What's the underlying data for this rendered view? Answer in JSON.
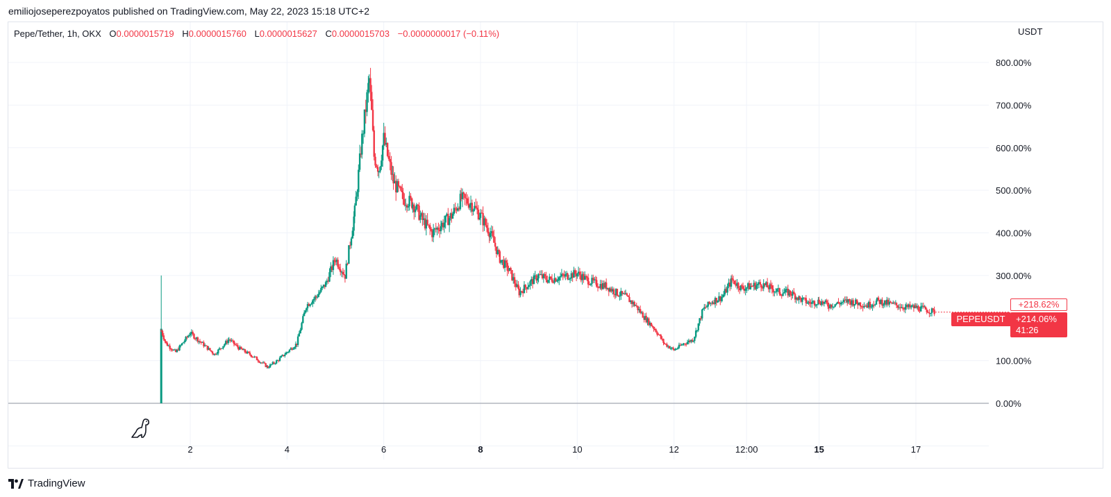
{
  "header": {
    "published": "emiliojoseperezpoyatos published on TradingView.com, May 22, 2023 15:18 UTC+2"
  },
  "legend": {
    "symbol": "Pepe/Tether, 1h, OKX",
    "open_label": "O",
    "open": "0.0000015719",
    "high_label": "H",
    "high": "0.0000015760",
    "low_label": "L",
    "low": "0.0000015627",
    "close_label": "C",
    "close": "0.0000015703",
    "change": "−0.0000000017 (−0.11%)"
  },
  "currency": "USDT",
  "badges": {
    "pct_change": "+218.62%",
    "ticker": "PEPEUSDT",
    "last_pct": "+214.06%",
    "countdown": "41:26"
  },
  "footer": {
    "brand": "TradingView"
  },
  "icons": {
    "logo": "tradingview-logo-icon",
    "watermark": "dinosaur-icon"
  },
  "colors": {
    "up": "#089981",
    "down": "#f23645",
    "grid": "#f0f3fa",
    "text": "#131722"
  },
  "chart_data": {
    "type": "candlestick",
    "title": "Pepe/Tether, 1h, OKX",
    "y_unit": "percent",
    "ylim": [
      -100,
      800
    ],
    "y_ticks": [
      "800.00%",
      "700.00%",
      "600.00%",
      "500.00%",
      "400.00%",
      "300.00%",
      "200.00%",
      "100.00%",
      "0.00%"
    ],
    "y_tick_values": [
      800,
      700,
      600,
      500,
      400,
      300,
      200,
      100,
      0
    ],
    "x_ticks": [
      "2",
      "4",
      "6",
      "8",
      "10",
      "12",
      "12:00",
      "15",
      "17"
    ],
    "x_tick_bold": [
      false,
      false,
      false,
      true,
      false,
      false,
      false,
      true,
      false
    ],
    "grid": true,
    "series": [
      {
        "name": "PEPEUSDT",
        "x": [
          1.4,
          1.5,
          1.7,
          2.0,
          2.2,
          2.5,
          2.8,
          3.0,
          3.3,
          3.6,
          3.8,
          4.0,
          4.2,
          4.4,
          4.6,
          4.8,
          5.0,
          5.2,
          5.4,
          5.55,
          5.7,
          5.75,
          5.8,
          5.9,
          6.0,
          6.2,
          6.4,
          6.6,
          6.8,
          7.0,
          7.2,
          7.4,
          7.6,
          7.8,
          8.0,
          8.2,
          8.4,
          8.6,
          8.8,
          9.0,
          9.2,
          9.4,
          9.6,
          9.8,
          10.0,
          10.2,
          10.4,
          10.6,
          10.8,
          11.0,
          11.2,
          11.4,
          11.6,
          11.8,
          12.0,
          12.2,
          12.4,
          12.6,
          12.8,
          13.0,
          13.2,
          13.4,
          13.6,
          13.8,
          14.0,
          14.2,
          14.4,
          14.6,
          14.8,
          15.0,
          15.2,
          15.4,
          15.6,
          15.8,
          16.0,
          16.2,
          16.4,
          16.6,
          16.8,
          17.0,
          17.2,
          17.4
        ],
        "values": [
          170,
          140,
          120,
          165,
          145,
          115,
          150,
          130,
          110,
          85,
          100,
          120,
          140,
          230,
          250,
          280,
          340,
          300,
          450,
          620,
          760,
          680,
          580,
          550,
          620,
          520,
          480,
          470,
          430,
          400,
          420,
          440,
          480,
          470,
          440,
          400,
          340,
          310,
          260,
          280,
          300,
          290,
          295,
          300,
          305,
          290,
          280,
          275,
          260,
          250,
          230,
          200,
          175,
          140,
          125,
          140,
          150,
          220,
          240,
          250,
          290,
          270,
          275,
          280,
          270,
          260,
          260,
          245,
          235,
          240,
          230,
          235,
          240,
          235,
          230,
          240,
          235,
          230,
          225,
          225,
          220,
          214
        ]
      }
    ]
  }
}
